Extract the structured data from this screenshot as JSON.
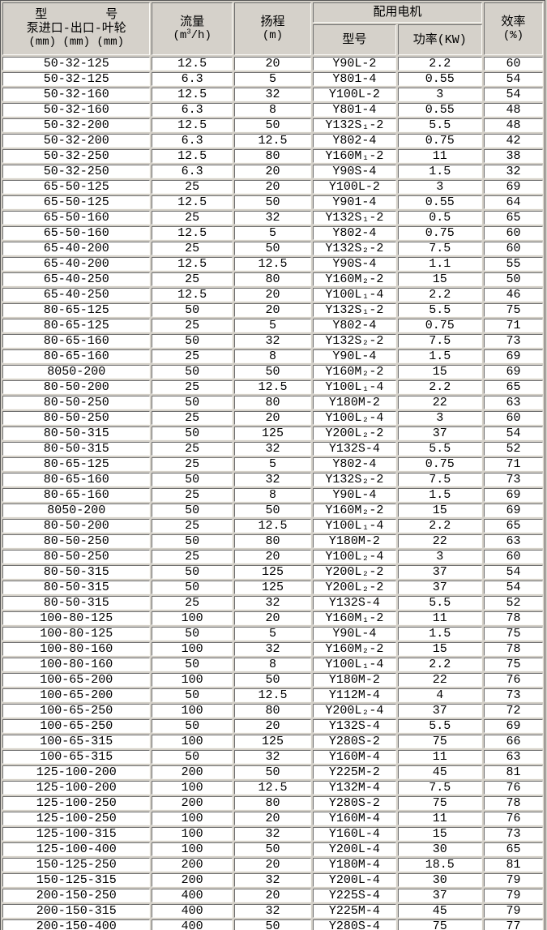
{
  "colors": {
    "page_bg": "#d4d0c8",
    "header_bg": "#d5d1ca",
    "cell_bg": "#ffffff",
    "border_dark": "#6e6e6e",
    "border_light": "#fbfaf6",
    "text": "#000000"
  },
  "table": {
    "headers": {
      "pump_model": {
        "line1": "型        号",
        "line2": "泵进口-出口-叶轮",
        "line3": "(mm) (mm) (mm)"
      },
      "flow": {
        "line1": "流量",
        "unit_prefix": "(m",
        "unit_sup": "3",
        "unit_suffix": "/h)"
      },
      "head": {
        "line1": "扬程",
        "unit": "(m)"
      },
      "motor_group": "配用电机",
      "motor_model": "型号",
      "motor_power": "功率(KW)",
      "efficiency": {
        "line1": "效率",
        "unit": "(%)"
      }
    },
    "columns": [
      "pump-model",
      "flow",
      "head",
      "motor-model",
      "motor-power",
      "efficiency"
    ],
    "rows": [
      [
        "50-32-125",
        "12.5",
        "20",
        "Y90L-2",
        "2.2",
        "60"
      ],
      [
        "50-32-125",
        "6.3",
        "5",
        "Y801-4",
        "0.55",
        "54"
      ],
      [
        "50-32-160",
        "12.5",
        "32",
        "Y100L-2",
        "3",
        "54"
      ],
      [
        "50-32-160",
        "6.3",
        "8",
        "Y801-4",
        "0.55",
        "48"
      ],
      [
        "50-32-200",
        "12.5",
        "50",
        "Y132S₁-2",
        "5.5",
        "48"
      ],
      [
        "50-32-200",
        "6.3",
        "12.5",
        "Y802-4",
        "0.75",
        "42"
      ],
      [
        "50-32-250",
        "12.5",
        "80",
        "Y160M₁-2",
        "11",
        "38"
      ],
      [
        "50-32-250",
        "6.3",
        "20",
        "Y90S-4",
        "1.5",
        "32"
      ],
      [
        "65-50-125",
        "25",
        "20",
        "Y100L-2",
        "3",
        "69"
      ],
      [
        "65-50-125",
        "12.5",
        "50",
        "Y901-4",
        "0.55",
        "64"
      ],
      [
        "65-50-160",
        "25",
        "32",
        "Y132S₁-2",
        "0.5",
        "65"
      ],
      [
        "65-50-160",
        "12.5",
        "5",
        "Y802-4",
        "0.75",
        "60"
      ],
      [
        "65-40-200",
        "25",
        "50",
        "Y132S₂-2",
        "7.5",
        "60"
      ],
      [
        "65-40-200",
        "12.5",
        "12.5",
        "Y90S-4",
        "1.1",
        "55"
      ],
      [
        "65-40-250",
        "25",
        "80",
        "Y160M₂-2",
        "15",
        "50"
      ],
      [
        "65-40-250",
        "12.5",
        "20",
        "Y100L₁-4",
        "2.2",
        "46"
      ],
      [
        "80-65-125",
        "50",
        "20",
        "Y132S₁-2",
        "5.5",
        "75"
      ],
      [
        "80-65-125",
        "25",
        "5",
        "Y802-4",
        "0.75",
        "71"
      ],
      [
        "80-65-160",
        "50",
        "32",
        "Y132S₂-2",
        "7.5",
        "73"
      ],
      [
        "80-65-160",
        "25",
        "8",
        "Y90L-4",
        "1.5",
        "69"
      ],
      [
        "8050-200",
        "50",
        "50",
        "Y160M₂-2",
        "15",
        "69"
      ],
      [
        "80-50-200",
        "25",
        "12.5",
        "Y100L₁-4",
        "2.2",
        "65"
      ],
      [
        "80-50-250",
        "50",
        "80",
        "Y180M-2",
        "22",
        "63"
      ],
      [
        "80-50-250",
        "25",
        "20",
        "Y100L₂-4",
        "3",
        "60"
      ],
      [
        "80-50-315",
        "50",
        "125",
        "Y200L₂-2",
        "37",
        "54"
      ],
      [
        "80-50-315",
        "25",
        "32",
        "Y132S-4",
        "5.5",
        "52"
      ],
      [
        "80-65-125",
        "25",
        "5",
        "Y802-4",
        "0.75",
        "71"
      ],
      [
        "80-65-160",
        "50",
        "32",
        "Y132S₂-2",
        "7.5",
        "73"
      ],
      [
        "80-65-160",
        "25",
        "8",
        "Y90L-4",
        "1.5",
        "69"
      ],
      [
        "8050-200",
        "50",
        "50",
        "Y160M₂-2",
        "15",
        "69"
      ],
      [
        "80-50-200",
        "25",
        "12.5",
        "Y100L₁-4",
        "2.2",
        "65"
      ],
      [
        "80-50-250",
        "50",
        "80",
        "Y180M-2",
        "22",
        "63"
      ],
      [
        "80-50-250",
        "25",
        "20",
        "Y100L₂-4",
        "3",
        "60"
      ],
      [
        "80-50-315",
        "50",
        "125",
        "Y200L₂-2",
        "37",
        "54"
      ],
      [
        "80-50-315",
        "50",
        "125",
        "Y200L₂-2",
        "37",
        "54"
      ],
      [
        "80-50-315",
        "25",
        "32",
        "Y132S-4",
        "5.5",
        "52"
      ],
      [
        "100-80-125",
        "100",
        "20",
        "Y160M₁-2",
        "11",
        "78"
      ],
      [
        "100-80-125",
        "50",
        "5",
        "Y90L-4",
        "1.5",
        "75"
      ],
      [
        "100-80-160",
        "100",
        "32",
        "Y160M₂-2",
        "15",
        "78"
      ],
      [
        "100-80-160",
        "50",
        "8",
        "Y100L₁-4",
        "2.2",
        "75"
      ],
      [
        "100-65-200",
        "100",
        "50",
        "Y180M-2",
        "22",
        "76"
      ],
      [
        "100-65-200",
        "50",
        "12.5",
        "Y112M-4",
        "4",
        "73"
      ],
      [
        "100-65-250",
        "100",
        "80",
        "Y200L₂-4",
        "37",
        "72"
      ],
      [
        "100-65-250",
        "50",
        "20",
        "Y132S-4",
        "5.5",
        "69"
      ],
      [
        "100-65-315",
        "100",
        "125",
        "Y280S-2",
        "75",
        "66"
      ],
      [
        "100-65-315",
        "50",
        "32",
        "Y160M-4",
        "11",
        "63"
      ],
      [
        "125-100-200",
        "200",
        "50",
        "Y225M-2",
        "45",
        "81"
      ],
      [
        "125-100-200",
        "100",
        "12.5",
        "Y132M-4",
        "7.5",
        "76"
      ],
      [
        "125-100-250",
        "200",
        "80",
        "Y280S-2",
        "75",
        "78"
      ],
      [
        "125-100-250",
        "100",
        "20",
        "Y160M-4",
        "11",
        "76"
      ],
      [
        "125-100-315",
        "100",
        "32",
        "Y160L-4",
        "15",
        "73"
      ],
      [
        "125-100-400",
        "100",
        "50",
        "Y200L-4",
        "30",
        "65"
      ],
      [
        "150-125-250",
        "200",
        "20",
        "Y180M-4",
        "18.5",
        "81"
      ],
      [
        "150-125-315",
        "200",
        "32",
        "Y200L-4",
        "30",
        "79"
      ],
      [
        "200-150-250",
        "400",
        "20",
        "Y225S-4",
        "37",
        "79"
      ],
      [
        "200-150-315",
        "400",
        "32",
        "Y225M-4",
        "45",
        "79"
      ],
      [
        "200-150-400",
        "400",
        "50",
        "Y280S-4",
        "75",
        "77"
      ]
    ]
  }
}
